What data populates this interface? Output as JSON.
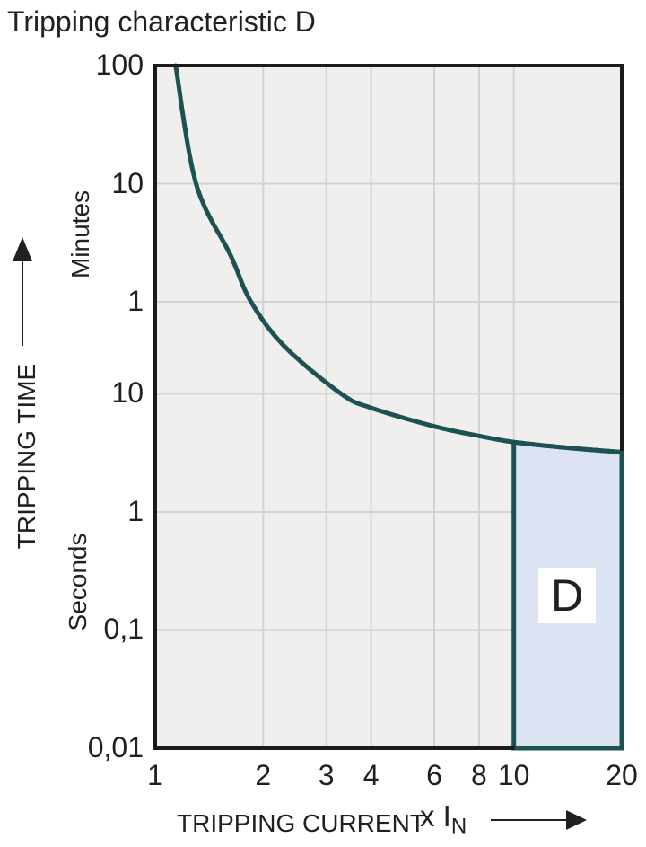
{
  "chart_data": {
    "type": "line",
    "title": "Tripping characteristic D",
    "x_axis": {
      "label": "TRIPPING CURRENT",
      "unit_prefix": "x I",
      "unit_sub": "N",
      "scale": "log",
      "range": [
        1,
        20
      ],
      "ticks": [
        1,
        2,
        3,
        4,
        6,
        8,
        10,
        20
      ]
    },
    "y_axis": {
      "label": "TRIPPING TIME",
      "scale": "log",
      "units": [
        "Minutes",
        "Seconds"
      ],
      "range_seconds": [
        0.01,
        6000
      ],
      "ticks": [
        {
          "label": "100",
          "seconds": 6000
        },
        {
          "label": "10",
          "seconds": 600
        },
        {
          "label": "1",
          "seconds": 60
        },
        {
          "label": "10",
          "seconds": 10
        },
        {
          "label": "1",
          "seconds": 1
        },
        {
          "label": "0,1",
          "seconds": 0.1
        },
        {
          "label": "0,01",
          "seconds": 0.01
        }
      ]
    },
    "series": [
      {
        "name": "tripping curve",
        "points_x_in_t_seconds": [
          [
            1.14,
            6000
          ],
          [
            1.3,
            600
          ],
          [
            1.62,
            150
          ],
          [
            1.85,
            60
          ],
          [
            2.3,
            25
          ],
          [
            3.3,
            10
          ],
          [
            4,
            7.6
          ],
          [
            6,
            5.3
          ],
          [
            8,
            4.4
          ],
          [
            10,
            3.9
          ],
          [
            14,
            3.5
          ],
          [
            20,
            3.2
          ]
        ]
      }
    ],
    "region": {
      "label": "D",
      "x_range": [
        10,
        20
      ],
      "top_follows_curve": true
    },
    "grid": true,
    "colors": {
      "curve": "#1d5253",
      "region_fill": "#dce3f3",
      "region_border": "#1d5253",
      "plot_background": "#f0efed",
      "gridline": "#d3d3d5",
      "axis_border": "#1b1b1b",
      "text": "#231f20",
      "region_label_background": "#ffffff"
    }
  }
}
